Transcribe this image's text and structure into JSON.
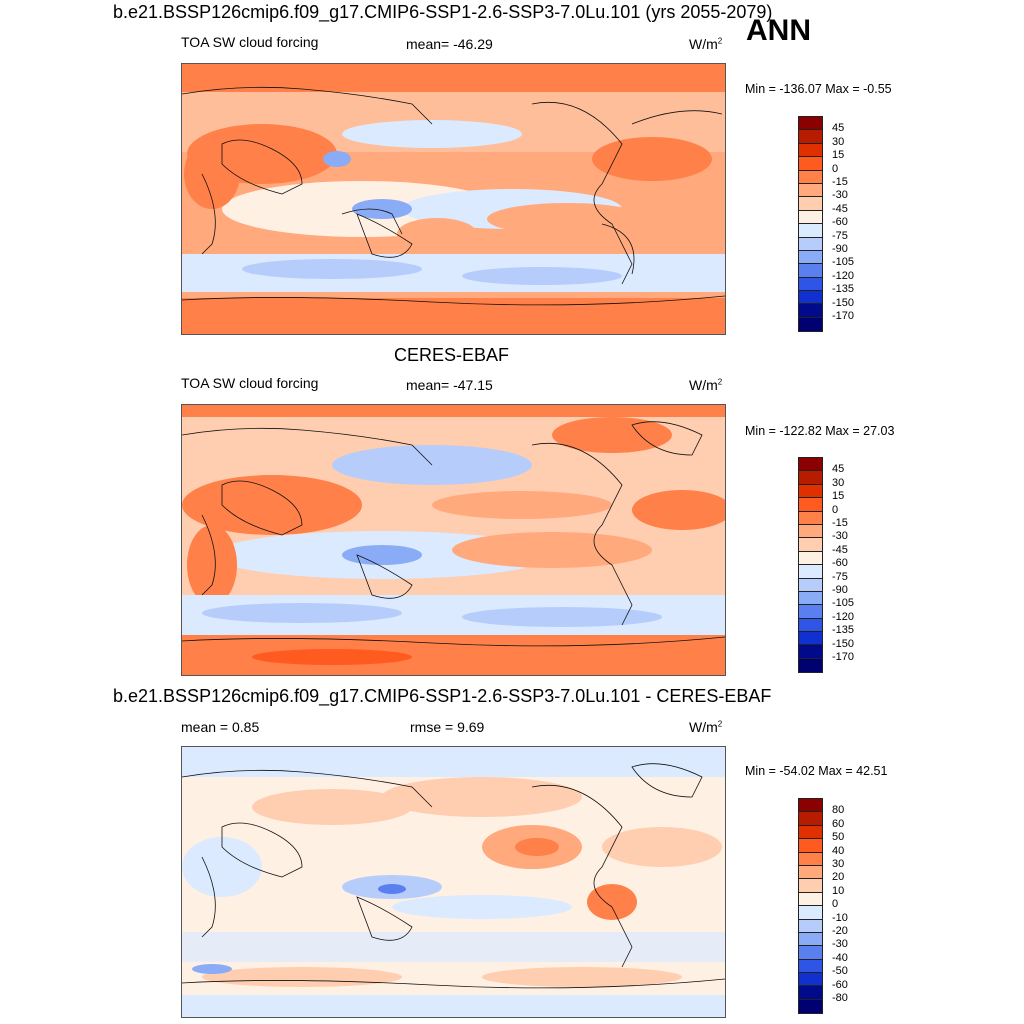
{
  "season": "ANN",
  "panels": [
    {
      "title": "b.e21.BSSP126cmip6.f09_g17.CMIP6-SSP1-2.6-SSP3-7.0Lu.101 (yrs 2055-2079)",
      "left_label": "TOA SW cloud forcing",
      "center_label": "mean= -46.29",
      "units": "W/m",
      "units_sup": "2",
      "minmax": "Min = -136.07 Max =  -0.55"
    },
    {
      "title": "CERES-EBAF",
      "left_label": "TOA SW cloud forcing",
      "center_label": "mean= -47.15",
      "units": "W/m",
      "units_sup": "2",
      "minmax": "Min = -122.82 Max =  27.03"
    },
    {
      "title": "b.e21.BSSP126cmip6.f09_g17.CMIP6-SSP1-2.6-SSP3-7.0Lu.101 - CERES-EBAF",
      "left_label": "mean =   0.85",
      "center_label": "rmse =   9.69",
      "units": "W/m",
      "units_sup": "2",
      "minmax": "Min = -54.02 Max =  42.51"
    }
  ],
  "chart_data": [
    {
      "type": "heatmap",
      "title": "b.e21.BSSP126cmip6.f09_g17.CMIP6-SSP1-2.6-SSP3-7.0Lu.101 (yrs 2055-2079)",
      "variable": "TOA SW cloud forcing",
      "mean": -46.29,
      "min": -136.07,
      "max": -0.55,
      "colorbar_levels": [
        "45",
        "30",
        "15",
        "0",
        "-15",
        "-30",
        "-45",
        "-60",
        "-75",
        "-90",
        "-105",
        "-120",
        "-135",
        "-150",
        "-170"
      ],
      "colorbar_colors": [
        "#8b0000",
        "#b81c00",
        "#e03000",
        "#ff5a1f",
        "#ff8048",
        "#ffa97c",
        "#ffcdaf",
        "#fff0e4",
        "#dbeaff",
        "#b6cdfb",
        "#8aabf6",
        "#5a80ef",
        "#2f55e6",
        "#1130d0",
        "#000a8a",
        "#000070"
      ]
    },
    {
      "type": "heatmap",
      "title": "CERES-EBAF",
      "variable": "TOA SW cloud forcing",
      "mean": -47.15,
      "min": -122.82,
      "max": 27.03,
      "colorbar_levels": [
        "45",
        "30",
        "15",
        "0",
        "-15",
        "-30",
        "-45",
        "-60",
        "-75",
        "-90",
        "-105",
        "-120",
        "-135",
        "-150",
        "-170"
      ],
      "colorbar_colors": [
        "#8b0000",
        "#b81c00",
        "#e03000",
        "#ff5a1f",
        "#ff8048",
        "#ffa97c",
        "#ffcdaf",
        "#fff0e4",
        "#dbeaff",
        "#b6cdfb",
        "#8aabf6",
        "#5a80ef",
        "#2f55e6",
        "#1130d0",
        "#000a8a",
        "#000070"
      ]
    },
    {
      "type": "heatmap",
      "title": "b.e21.BSSP126cmip6.f09_g17.CMIP6-SSP1-2.6-SSP3-7.0Lu.101 - CERES-EBAF",
      "variable": "difference",
      "mean": 0.85,
      "rmse": 9.69,
      "min": -54.02,
      "max": 42.51,
      "colorbar_levels": [
        "80",
        "60",
        "50",
        "40",
        "30",
        "20",
        "10",
        "0",
        "-10",
        "-20",
        "-30",
        "-40",
        "-50",
        "-60",
        "-80"
      ],
      "colorbar_colors": [
        "#8b0000",
        "#b81c00",
        "#e03000",
        "#ff5a1f",
        "#ff8048",
        "#ffa97c",
        "#ffcdaf",
        "#fff0e4",
        "#dbeaff",
        "#b6cdfb",
        "#8aabf6",
        "#5a80ef",
        "#2f55e6",
        "#1130d0",
        "#000a8a",
        "#000070"
      ]
    }
  ]
}
